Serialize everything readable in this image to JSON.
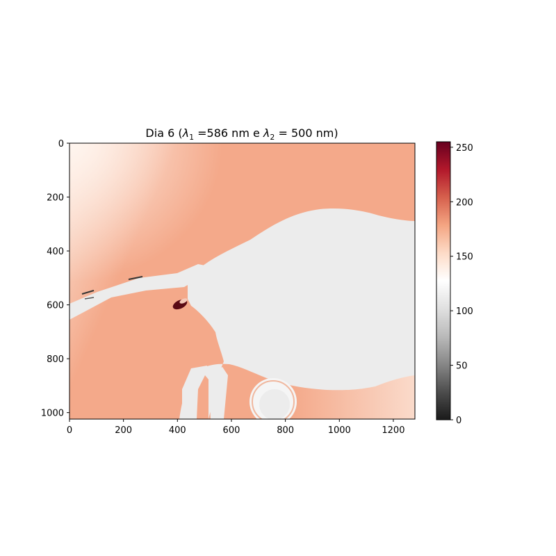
{
  "chart_data": {
    "type": "heatmap",
    "title": {
      "prefix": "Dia 6 (",
      "lambda1_sub": "1",
      "lambda1_value": " =586 nm e ",
      "lambda2_sub": "2",
      "lambda2_value": " = 500 nm)"
    },
    "xlabel": "",
    "ylabel": "",
    "x_range": [
      0,
      1280
    ],
    "y_range": [
      0,
      1024
    ],
    "x_ticks": [
      0,
      200,
      400,
      600,
      800,
      1000,
      1200
    ],
    "y_ticks": [
      0,
      200,
      400,
      600,
      800,
      1000
    ],
    "colorbar": {
      "range": [
        0,
        255
      ],
      "ticks": [
        0,
        50,
        100,
        150,
        200,
        250
      ],
      "colormap": "RdGy_r",
      "stops": [
        "#1a1a1a",
        "#4d4d4d",
        "#878787",
        "#bababa",
        "#e0e0e0",
        "#ffffff",
        "#fddbc7",
        "#f4a582",
        "#d6604d",
        "#b2182b",
        "#67001f"
      ]
    },
    "image_regions": {
      "background": "#f4a98a",
      "background_light": "#fbe3d6",
      "object": "#ececec",
      "object_light": "#f5f5f5",
      "dark_spot": "#5a0a14"
    }
  }
}
